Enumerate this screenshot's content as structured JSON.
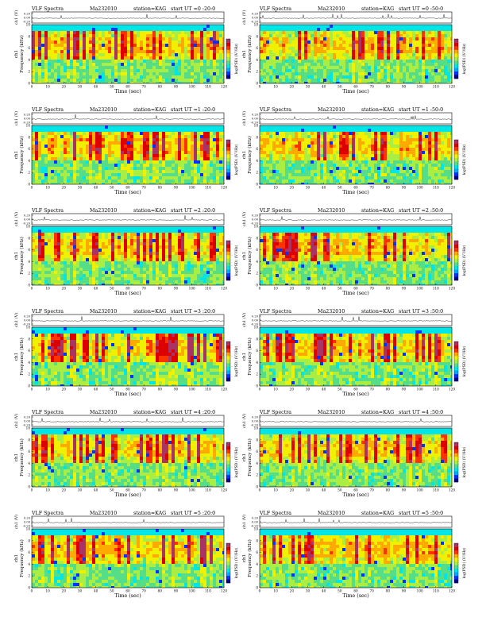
{
  "sheet": {
    "colors": {
      "spectrogram_scale": [
        "#00008b",
        "#0033ff",
        "#00aaff",
        "#00e5e5",
        "#55dd88",
        "#aaee44",
        "#f0f000",
        "#ffaa00",
        "#ff3300",
        "#dd0000",
        "#aa3366"
      ]
    }
  },
  "chart_data": [
    {
      "type": "heatmap",
      "header": {
        "left": "VLF Spectra",
        "date": "Ma232010",
        "station": "station=KAG",
        "start": "start  UT  =0 :20:0"
      },
      "ylabel": "Frequency (kHz)",
      "channel_label": "ch1",
      "trace_label": "ch1 (V)",
      "trace_ticks": [
        "0.20",
        "0.00",
        "-0.20"
      ],
      "xlabel": "Time (sec)",
      "colorbar_label": "log(PSD) (V²/Hz)",
      "x_ticks": [
        0,
        10,
        20,
        30,
        40,
        50,
        60,
        70,
        80,
        90,
        100,
        110,
        120
      ],
      "y_ticks": [
        0,
        2,
        4,
        6,
        8,
        10
      ],
      "xlim": [
        0,
        120
      ],
      "ylim": [
        0,
        10
      ],
      "colorbar_ticks": [
        "-",
        "-",
        "-",
        "-"
      ]
    },
    {
      "type": "heatmap",
      "header": {
        "left": "VLF Spectra",
        "date": "Ma232010",
        "station": "station=KAG",
        "start": "start  UT  =0 :50:0"
      },
      "ylabel": "Frequency (kHz)",
      "channel_label": "ch1",
      "trace_label": "ch1 (V)",
      "trace_ticks": [
        "0.20",
        "0.00",
        "-0.20"
      ],
      "xlabel": "Time (sec)",
      "colorbar_label": "log(PSD) (V²/Hz)",
      "x_ticks": [
        0,
        10,
        20,
        30,
        40,
        50,
        60,
        70,
        80,
        90,
        100,
        110,
        120
      ],
      "y_ticks": [
        0,
        2,
        4,
        6,
        8,
        10
      ],
      "xlim": [
        0,
        120
      ],
      "ylim": [
        0,
        10
      ],
      "colorbar_ticks": [
        "-",
        "-",
        "-",
        "-"
      ]
    },
    {
      "type": "heatmap",
      "header": {
        "left": "VLF Spectra",
        "date": "Ma232010",
        "station": "station=KAG",
        "start": "start  UT  =1 :20:0"
      },
      "ylabel": "Frequency (kHz)",
      "channel_label": "ch1",
      "trace_label": "ch1 (V)",
      "trace_ticks": [
        "0.20",
        "0.00",
        "-0.20"
      ],
      "xlabel": "Time (sec)",
      "colorbar_label": "log(PSD) (V²/Hz)",
      "x_ticks": [
        0,
        10,
        20,
        30,
        40,
        50,
        60,
        70,
        80,
        90,
        100,
        110,
        120
      ],
      "y_ticks": [
        0,
        2,
        4,
        6,
        8,
        10
      ],
      "xlim": [
        0,
        120
      ],
      "ylim": [
        0,
        10
      ],
      "colorbar_ticks": [
        "-",
        "-",
        "-",
        "-"
      ]
    },
    {
      "type": "heatmap",
      "header": {
        "left": "VLF Spectra",
        "date": "Ma232010",
        "station": "station=KAG",
        "start": "start  UT  =1 :50:0"
      },
      "ylabel": "Frequency (kHz)",
      "channel_label": "ch1",
      "trace_label": "ch1 (V)",
      "trace_ticks": [
        "0.20",
        "0.00",
        "-0.20"
      ],
      "xlabel": "Time (sec)",
      "colorbar_label": "log(PSD) (V²/Hz)",
      "x_ticks": [
        0,
        10,
        20,
        30,
        40,
        50,
        60,
        70,
        80,
        90,
        100,
        110,
        120
      ],
      "y_ticks": [
        0,
        2,
        4,
        6,
        8,
        10
      ],
      "xlim": [
        0,
        120
      ],
      "ylim": [
        0,
        10
      ],
      "colorbar_ticks": [
        "-",
        "-",
        "-",
        "-"
      ]
    },
    {
      "type": "heatmap",
      "header": {
        "left": "VLF Spectra",
        "date": "Ma232010",
        "station": "station=KAG",
        "start": "start  UT  =2 :20:0"
      },
      "ylabel": "Frequency (kHz)",
      "channel_label": "ch1",
      "trace_label": "ch1 (V)",
      "trace_ticks": [
        "0.20",
        "0.00",
        "-0.20"
      ],
      "xlabel": "Time (sec)",
      "colorbar_label": "log(PSD) (V²/Hz)",
      "x_ticks": [
        0,
        10,
        20,
        30,
        40,
        50,
        60,
        70,
        80,
        90,
        100,
        110,
        120
      ],
      "y_ticks": [
        0,
        2,
        4,
        6,
        8,
        10
      ],
      "xlim": [
        0,
        120
      ],
      "ylim": [
        0,
        10
      ],
      "colorbar_ticks": [
        "-",
        "-",
        "-",
        "-"
      ]
    },
    {
      "type": "heatmap",
      "header": {
        "left": "VLF Spectra",
        "date": "Ma232010",
        "station": "station=KAG",
        "start": "start  UT  =2 :50:0"
      },
      "ylabel": "Frequency (kHz)",
      "channel_label": "ch1",
      "trace_label": "ch1 (V)",
      "trace_ticks": [
        "0.20",
        "0.00",
        "-0.20"
      ],
      "xlabel": "Time (sec)",
      "colorbar_label": "log(PSD) (V²/Hz)",
      "x_ticks": [
        0,
        10,
        20,
        30,
        40,
        50,
        60,
        70,
        80,
        90,
        100,
        110,
        120
      ],
      "y_ticks": [
        0,
        2,
        4,
        6,
        8,
        10
      ],
      "xlim": [
        0,
        120
      ],
      "ylim": [
        0,
        10
      ],
      "colorbar_ticks": [
        "-",
        "-",
        "-",
        "-"
      ]
    },
    {
      "type": "heatmap",
      "header": {
        "left": "VLF Spectra",
        "date": "Ma232010",
        "station": "station=KAG",
        "start": "start  UT  =3 :20:0"
      },
      "ylabel": "Frequency (kHz)",
      "channel_label": "ch1",
      "trace_label": "ch1 (V)",
      "trace_ticks": [
        "0.20",
        "0.00",
        "-0.20"
      ],
      "xlabel": "Time (sec)",
      "colorbar_label": "log(PSD) (V²/Hz)",
      "x_ticks": [
        0,
        10,
        20,
        30,
        40,
        50,
        60,
        70,
        80,
        90,
        100,
        110,
        120
      ],
      "y_ticks": [
        0,
        2,
        4,
        6,
        8,
        10
      ],
      "xlim": [
        0,
        120
      ],
      "ylim": [
        0,
        10
      ],
      "colorbar_ticks": [
        "-",
        "-",
        "-",
        "-"
      ]
    },
    {
      "type": "heatmap",
      "header": {
        "left": "VLF Spectra",
        "date": "Ma232010",
        "station": "station=KAG",
        "start": "start  UT  =3 :50:0"
      },
      "ylabel": "Frequency (kHz)",
      "channel_label": "ch1",
      "trace_label": "ch1 (V)",
      "trace_ticks": [
        "0.20",
        "0.00",
        "-0.20"
      ],
      "xlabel": "Time (sec)",
      "colorbar_label": "log(PSD) (V²/Hz)",
      "x_ticks": [
        0,
        10,
        20,
        30,
        40,
        50,
        60,
        70,
        80,
        90,
        100,
        110,
        120
      ],
      "y_ticks": [
        0,
        2,
        4,
        6,
        8,
        10
      ],
      "xlim": [
        0,
        120
      ],
      "ylim": [
        0,
        10
      ],
      "colorbar_ticks": [
        "-",
        "-",
        "-",
        "-"
      ]
    },
    {
      "type": "heatmap",
      "header": {
        "left": "VLF Spectra",
        "date": "Ma232010",
        "station": "station=KAG",
        "start": "start  UT  =4 :20:0"
      },
      "ylabel": "Frequency (kHz)",
      "channel_label": "ch1",
      "trace_label": "ch1 (V)",
      "trace_ticks": [
        "0.20",
        "0.00",
        "-0.20"
      ],
      "xlabel": "Time (sec)",
      "colorbar_label": "log(PSD) (V²/Hz)",
      "x_ticks": [
        0,
        10,
        20,
        30,
        40,
        50,
        60,
        70,
        80,
        90,
        100,
        110,
        120
      ],
      "y_ticks": [
        0,
        2,
        4,
        6,
        8,
        10
      ],
      "xlim": [
        0,
        120
      ],
      "ylim": [
        0,
        10
      ],
      "colorbar_ticks": [
        "-",
        "-",
        "-",
        "-"
      ]
    },
    {
      "type": "heatmap",
      "header": {
        "left": "VLF Spectra",
        "date": "Ma232010",
        "station": "station=KAG",
        "start": "start  UT  =4 :50:0"
      },
      "ylabel": "Frequency (kHz)",
      "channel_label": "ch1",
      "trace_label": "ch1 (V)",
      "trace_ticks": [
        "0.20",
        "0.00",
        "-0.20"
      ],
      "xlabel": "Time (sec)",
      "colorbar_label": "log(PSD) (V²/Hz)",
      "x_ticks": [
        0,
        10,
        20,
        30,
        40,
        50,
        60,
        70,
        80,
        90,
        100,
        110,
        120
      ],
      "y_ticks": [
        0,
        2,
        4,
        6,
        8,
        10
      ],
      "xlim": [
        0,
        120
      ],
      "ylim": [
        0,
        10
      ],
      "colorbar_ticks": [
        "-",
        "-",
        "-",
        "-"
      ]
    },
    {
      "type": "heatmap",
      "header": {
        "left": "VLF Spectra",
        "date": "Ma232010",
        "station": "station=KAG",
        "start": "start  UT  =5 :20:0"
      },
      "ylabel": "Frequency (kHz)",
      "channel_label": "ch1",
      "trace_label": "ch1 (V)",
      "trace_ticks": [
        "0.20",
        "0.00",
        "-0.20"
      ],
      "xlabel": "Time (sec)",
      "colorbar_label": "log(PSD) (V²/Hz)",
      "x_ticks": [
        0,
        10,
        20,
        30,
        40,
        50,
        60,
        70,
        80,
        90,
        100,
        110,
        120
      ],
      "y_ticks": [
        0,
        2,
        4,
        6,
        8,
        10
      ],
      "xlim": [
        0,
        120
      ],
      "ylim": [
        0,
        10
      ],
      "colorbar_ticks": [
        "-",
        "-",
        "-",
        "-"
      ]
    },
    {
      "type": "heatmap",
      "header": {
        "left": "VLF Spectra",
        "date": "Ma232010",
        "station": "station=KAG",
        "start": "start  UT  =5 :50:0"
      },
      "ylabel": "Frequency (kHz)",
      "channel_label": "ch1",
      "trace_label": "ch1 (V)",
      "trace_ticks": [
        "0.20",
        "0.00",
        "-0.20"
      ],
      "xlabel": "Time (sec)",
      "colorbar_label": "log(PSD) (V²/Hz)",
      "x_ticks": [
        0,
        10,
        20,
        30,
        40,
        50,
        60,
        70,
        80,
        90,
        100,
        110,
        120
      ],
      "y_ticks": [
        0,
        2,
        4,
        6,
        8,
        10
      ],
      "xlim": [
        0,
        120
      ],
      "ylim": [
        0,
        10
      ],
      "colorbar_ticks": [
        "-",
        "-",
        "-",
        "-"
      ]
    }
  ]
}
